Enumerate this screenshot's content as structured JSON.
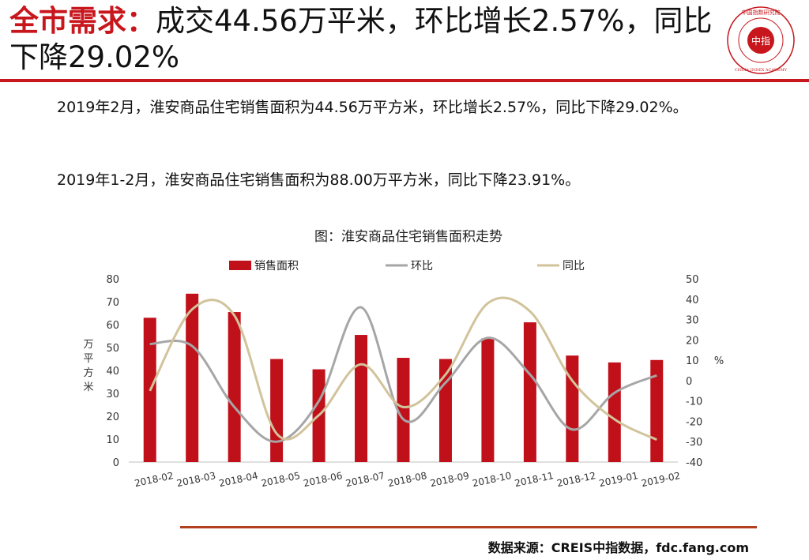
{
  "header": {
    "title_keyword": "全市需求：",
    "title_rest": "成交44.56万平米，环比增长2.57%，同比下降29.02%",
    "logo_text_center": "中指",
    "logo_text_ring": "中国指数研究院 · CHINA INDEX ACADEMY"
  },
  "body": {
    "paragraph1": "2019年2月，淮安商品住宅销售面积为44.56万平方米，环比增长2.57%，同比下降29.02%。",
    "paragraph2": "2019年1-2月，淮安商品住宅销售面积为88.00万平方米，同比下降23.91%。"
  },
  "chart_data": {
    "type": "bar",
    "title": "图：淮安商品住宅销售面积走势",
    "categories": [
      "2018-02",
      "2018-03",
      "2018-04",
      "2018-05",
      "2018-06",
      "2018-07",
      "2018-08",
      "2018-09",
      "2018-10",
      "2018-11",
      "2018-12",
      "2019-01",
      "2019-02"
    ],
    "series": [
      {
        "name": "销售面积",
        "kind": "bar",
        "axis": "left",
        "color": "#c0101a",
        "values": [
          63,
          73.5,
          65.5,
          45,
          40.5,
          55.5,
          45.5,
          45,
          54,
          61,
          46.5,
          43.5,
          44.56
        ]
      },
      {
        "name": "环比",
        "kind": "line",
        "axis": "right",
        "color": "#a6a6a6",
        "values": [
          18,
          17,
          -13,
          -30,
          -10,
          36,
          -19,
          -1,
          21,
          3,
          -24,
          -6,
          2.57
        ]
      },
      {
        "name": "同比",
        "kind": "line",
        "axis": "right",
        "color": "#d1c39b",
        "values": [
          -5,
          35,
          32,
          -26,
          -17,
          8,
          -13,
          3,
          38,
          34,
          0,
          -19,
          -29.02
        ]
      }
    ],
    "ylabel": "万平方米",
    "ylim": [
      0,
      80
    ],
    "yticks": [
      0,
      10,
      20,
      30,
      40,
      50,
      60,
      70,
      80
    ],
    "y2label": "%",
    "y2lim": [
      -40,
      50
    ],
    "y2ticks": [
      -40,
      -30,
      -20,
      -10,
      0,
      10,
      20,
      30,
      40,
      50
    ],
    "legend_position": "top",
    "grid": false
  },
  "footer": {
    "source": "数据来源：CREIS中指数据，fdc.fang.com"
  }
}
